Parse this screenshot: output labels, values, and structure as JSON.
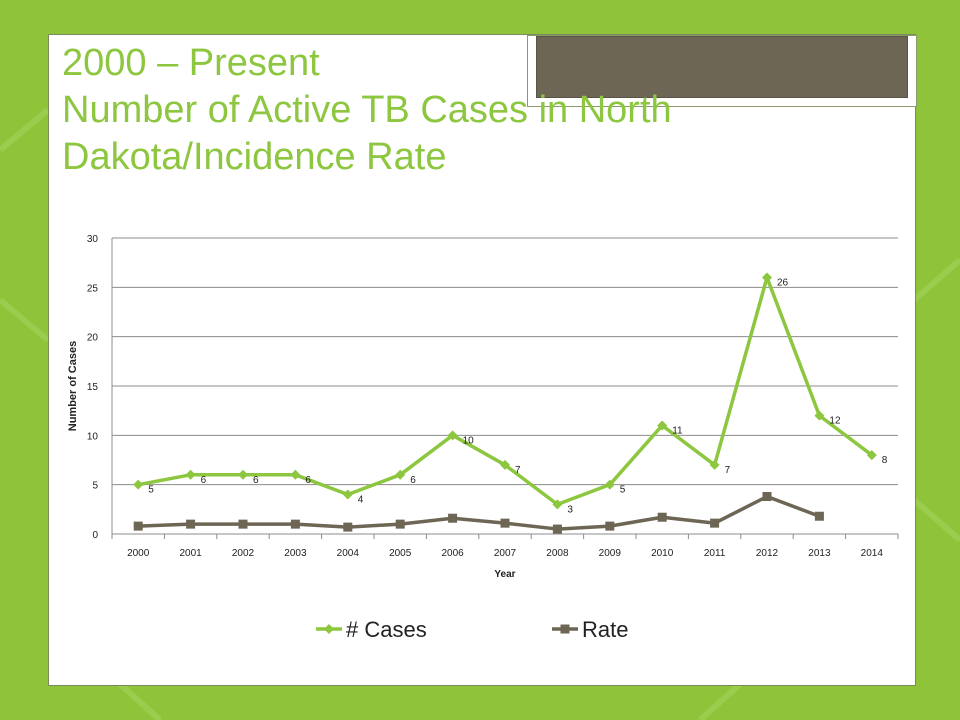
{
  "slide": {
    "title_line1": "2000 – Present",
    "title_line2": "Number of Active TB Cases in North Dakota/Incidence Rate"
  },
  "colors": {
    "background": "#8fc43a",
    "title": "#8dc63f",
    "cases_series": "#8dc63f",
    "rate_series": "#6e6655"
  },
  "chart_data": {
    "type": "line",
    "xlabel": "Year",
    "ylabel": "Number of Cases",
    "ylim": [
      0,
      30
    ],
    "yticks": [
      "0",
      "5",
      "10",
      "15",
      "20",
      "25",
      "30"
    ],
    "categories": [
      "2000",
      "2001",
      "2002",
      "2003",
      "2004",
      "2005",
      "2006",
      "2007",
      "2008",
      "2009",
      "2010",
      "2011",
      "2012",
      "2013",
      "2014"
    ],
    "grid": true,
    "legend_position": "bottom",
    "series": [
      {
        "name": "# Cases",
        "marker": "diamond",
        "values": [
          5,
          6,
          6,
          6,
          4,
          6,
          10,
          7,
          3,
          5,
          11,
          7,
          26,
          12,
          8
        ],
        "labels": [
          "5",
          "6",
          "6",
          "6",
          "4",
          "6",
          "10",
          "7",
          "3",
          "5",
          "11",
          "7",
          "26",
          "12",
          "8"
        ]
      },
      {
        "name": "Rate",
        "marker": "square",
        "values": [
          0.8,
          1.0,
          1.0,
          1.0,
          0.7,
          1.0,
          1.6,
          1.1,
          0.5,
          0.8,
          1.7,
          1.1,
          3.8,
          1.8,
          null
        ]
      }
    ]
  }
}
